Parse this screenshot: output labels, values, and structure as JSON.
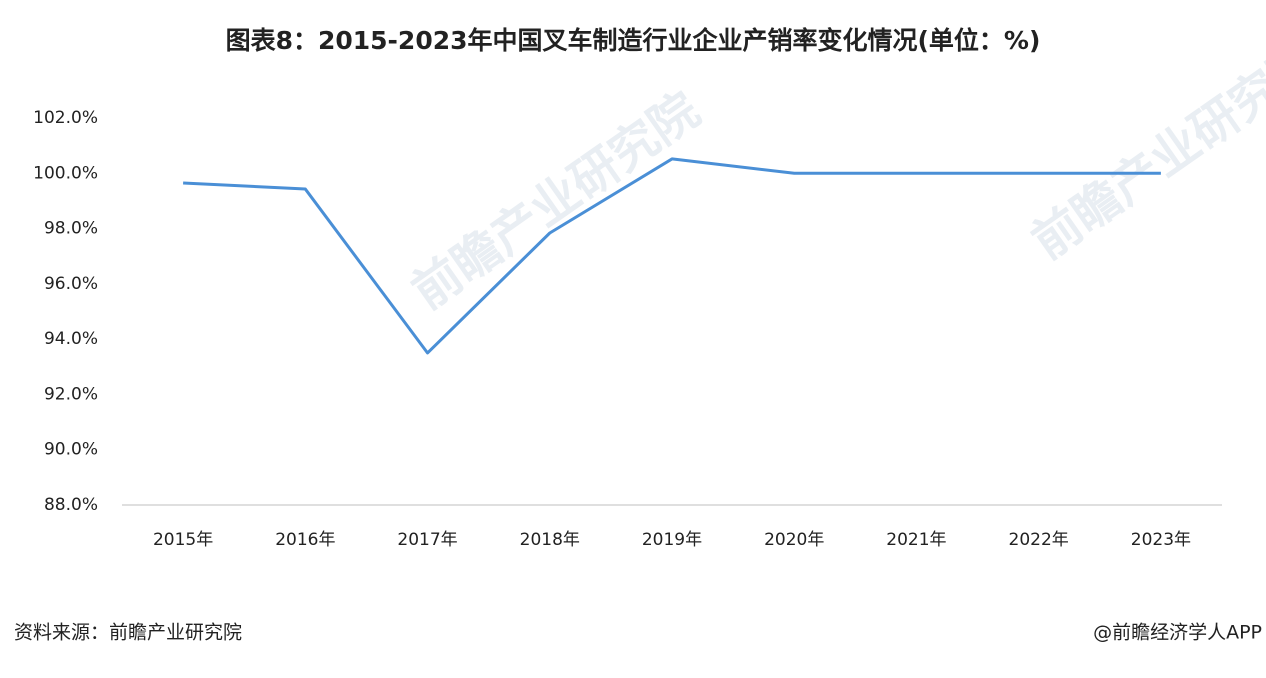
{
  "chart_data": {
    "type": "line",
    "title": "图表8：2015-2023年中国叉车制造行业企业产销率变化情况(单位：%)",
    "categories": [
      "2015年",
      "2016年",
      "2017年",
      "2018年",
      "2019年",
      "2020年",
      "2021年",
      "2022年",
      "2023年"
    ],
    "series": [
      {
        "name": "产销率",
        "color": "#4a8fd6",
        "values": [
          99.65,
          99.43,
          93.5,
          97.84,
          100.52,
          100,
          100,
          100,
          100
        ]
      }
    ],
    "ylim": [
      88,
      102
    ],
    "yticks": [
      {
        "value": 88,
        "label": "88.0%"
      },
      {
        "value": 90,
        "label": "90.0%"
      },
      {
        "value": 92,
        "label": "92.0%"
      },
      {
        "value": 94,
        "label": "94.0%"
      },
      {
        "value": 96,
        "label": "96.0%"
      },
      {
        "value": 98,
        "label": "98.0%"
      },
      {
        "value": 100,
        "label": "100.0%"
      },
      {
        "value": 102,
        "label": "102.0%"
      }
    ],
    "grid": false,
    "source": "资料来源：前瞻产业研究院",
    "credit": "@前瞻经济学人APP",
    "watermark": "前瞻产业研究院"
  }
}
